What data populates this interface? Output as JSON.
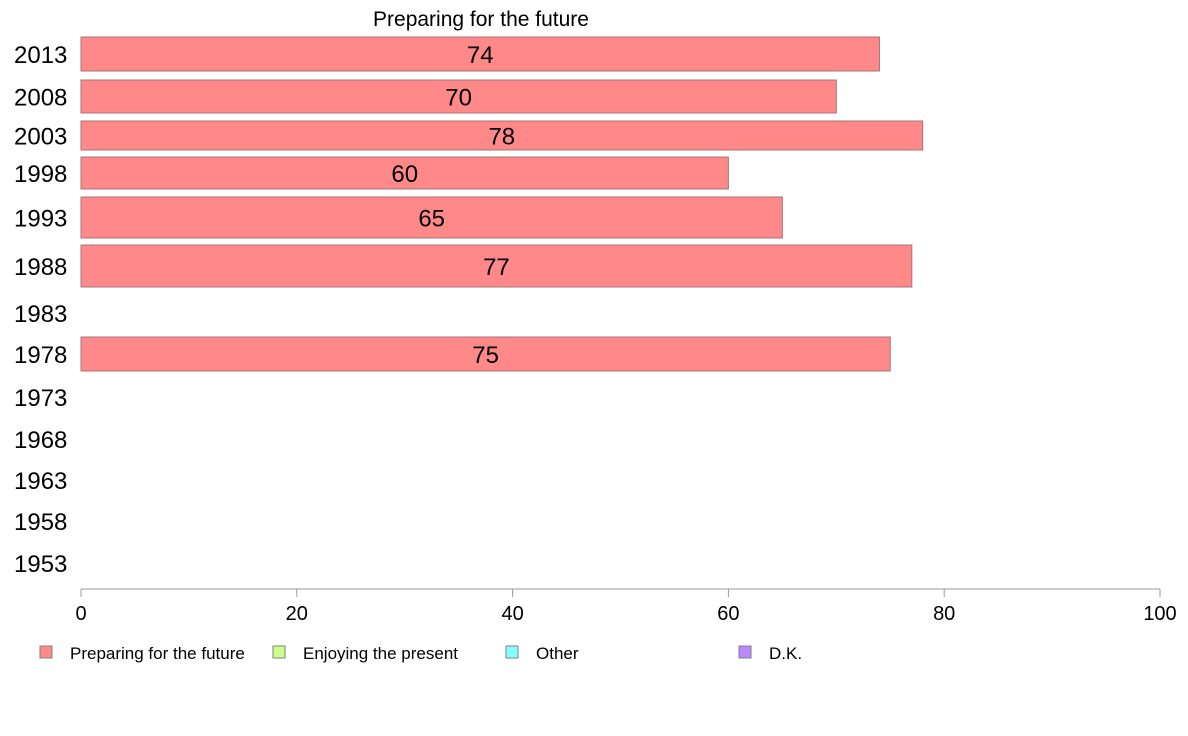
{
  "chart_data": {
    "type": "bar",
    "orientation": "horizontal",
    "title": "Preparing for the future",
    "categories": [
      "2013",
      "2008",
      "2003",
      "1998",
      "1993",
      "1988",
      "1983",
      "1978",
      "1973",
      "1968",
      "1963",
      "1958",
      "1953"
    ],
    "series": [
      {
        "name": "Preparing for the future",
        "color": "#ff8888",
        "values": [
          74,
          70,
          78,
          60,
          65,
          77,
          null,
          75,
          null,
          null,
          null,
          null,
          null
        ]
      }
    ],
    "x_ticks": [
      "0",
      "20",
      "40",
      "60",
      "80",
      "100"
    ],
    "xlim": [
      0,
      100
    ],
    "grid": false,
    "legend": {
      "placement": "bottom",
      "items": [
        {
          "label": "Preparing for the future",
          "color": "#ff8888"
        },
        {
          "label": "Enjoying the present",
          "color": "#ccff88"
        },
        {
          "label": "Other",
          "color": "#88ffff"
        },
        {
          "label": "D.K.",
          "color": "#bb88ff"
        }
      ]
    }
  }
}
